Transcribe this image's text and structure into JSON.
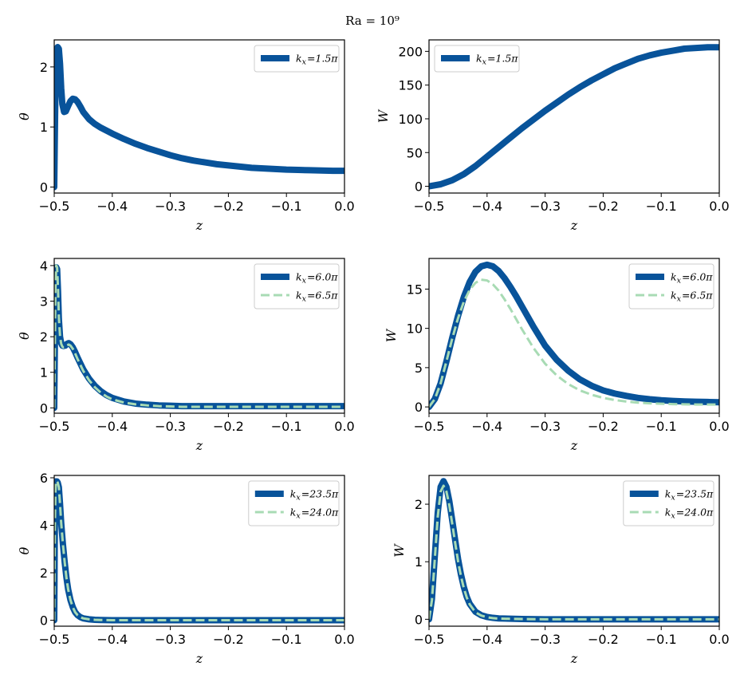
{
  "suptitle": "Ra = 10⁹",
  "colors": {
    "dark": "#08539a",
    "light": "#a8dbb4"
  },
  "chart_data": [
    {
      "type": "line",
      "id": "p1",
      "ylabel": "θ",
      "xlabel": "z",
      "xlim": [
        -0.5,
        0.0
      ],
      "ylim": [
        -0.1,
        2.45
      ],
      "xticks": [
        -0.5,
        -0.4,
        -0.3,
        -0.2,
        -0.1,
        0.0
      ],
      "xtick_labels": [
        "−0.5",
        "−0.4",
        "−0.3",
        "−0.2",
        "−0.1",
        "0.0"
      ],
      "yticks": [
        0,
        1,
        2
      ],
      "ytick_labels": [
        "0",
        "1",
        "2"
      ],
      "legend_loc": "upper right",
      "series": [
        {
          "name": "k_x = 1.5π",
          "label_base": "k",
          "label_sub": "x",
          "label_rest": "=1.5π",
          "style": "solid",
          "x": [
            -0.5,
            -0.4985,
            -0.497,
            -0.4955,
            -0.494,
            -0.492,
            -0.49,
            -0.488,
            -0.486,
            -0.483,
            -0.48,
            -0.476,
            -0.472,
            -0.468,
            -0.464,
            -0.46,
            -0.455,
            -0.45,
            -0.44,
            -0.43,
            -0.42,
            -0.41,
            -0.4,
            -0.38,
            -0.36,
            -0.34,
            -0.32,
            -0.3,
            -0.28,
            -0.26,
            -0.24,
            -0.22,
            -0.2,
            -0.18,
            -0.16,
            -0.14,
            -0.12,
            -0.1,
            -0.08,
            -0.06,
            -0.04,
            -0.02,
            0.0
          ],
          "y": [
            0.0,
            1.2,
            2.1,
            2.3,
            2.33,
            2.3,
            2.05,
            1.65,
            1.38,
            1.25,
            1.26,
            1.35,
            1.43,
            1.47,
            1.46,
            1.42,
            1.34,
            1.25,
            1.13,
            1.05,
            0.99,
            0.94,
            0.89,
            0.8,
            0.72,
            0.65,
            0.59,
            0.53,
            0.48,
            0.44,
            0.41,
            0.38,
            0.36,
            0.34,
            0.32,
            0.31,
            0.3,
            0.29,
            0.285,
            0.28,
            0.275,
            0.27,
            0.27
          ]
        }
      ]
    },
    {
      "type": "line",
      "id": "p2",
      "ylabel": "W",
      "xlabel": "z",
      "xlim": [
        -0.5,
        0.0
      ],
      "ylim": [
        -10,
        217
      ],
      "xticks": [
        -0.5,
        -0.4,
        -0.3,
        -0.2,
        -0.1,
        0.0
      ],
      "xtick_labels": [
        "−0.5",
        "−0.4",
        "−0.3",
        "−0.2",
        "−0.1",
        "0.0"
      ],
      "yticks": [
        0,
        50,
        100,
        150,
        200
      ],
      "ytick_labels": [
        "0",
        "50",
        "100",
        "150",
        "200"
      ],
      "legend_loc": "upper left",
      "series": [
        {
          "name": "k_x = 1.5π",
          "label_base": "k",
          "label_sub": "x",
          "label_rest": "=1.5π",
          "style": "solid",
          "x": [
            -0.5,
            -0.48,
            -0.46,
            -0.44,
            -0.42,
            -0.4,
            -0.38,
            -0.36,
            -0.34,
            -0.32,
            -0.3,
            -0.28,
            -0.26,
            -0.24,
            -0.22,
            -0.2,
            -0.18,
            -0.16,
            -0.14,
            -0.12,
            -0.1,
            -0.08,
            -0.06,
            -0.04,
            -0.02,
            0.0
          ],
          "y": [
            0,
            3,
            9,
            18,
            30,
            44,
            58,
            72,
            86,
            99,
            112,
            124,
            136,
            147,
            157,
            166,
            175,
            182,
            189,
            194,
            198,
            201,
            204,
            205,
            206,
            206
          ]
        }
      ]
    },
    {
      "type": "line",
      "id": "p3",
      "ylabel": "θ",
      "xlabel": "z",
      "xlim": [
        -0.5,
        0.0
      ],
      "ylim": [
        -0.15,
        4.2
      ],
      "xticks": [
        -0.5,
        -0.4,
        -0.3,
        -0.2,
        -0.1,
        0.0
      ],
      "xtick_labels": [
        "−0.5",
        "−0.4",
        "−0.3",
        "−0.2",
        "−0.1",
        "0.0"
      ],
      "yticks": [
        0,
        1,
        2,
        3,
        4
      ],
      "ytick_labels": [
        "0",
        "1",
        "2",
        "3",
        "4"
      ],
      "legend_loc": "upper right",
      "series": [
        {
          "name": "k_x = 6.0π",
          "label_base": "k",
          "label_sub": "x",
          "label_rest": "=6.0π",
          "style": "solid",
          "x": [
            -0.5,
            -0.499,
            -0.498,
            -0.4965,
            -0.495,
            -0.4935,
            -0.492,
            -0.49,
            -0.488,
            -0.486,
            -0.484,
            -0.481,
            -0.478,
            -0.475,
            -0.472,
            -0.468,
            -0.464,
            -0.46,
            -0.455,
            -0.45,
            -0.44,
            -0.43,
            -0.42,
            -0.41,
            -0.4,
            -0.38,
            -0.36,
            -0.34,
            -0.32,
            -0.3,
            -0.28,
            -0.25,
            -0.2,
            -0.15,
            -0.1,
            -0.05,
            0.0
          ],
          "y": [
            0.0,
            1.6,
            3.3,
            3.95,
            3.9,
            3.3,
            2.5,
            2.0,
            1.82,
            1.75,
            1.74,
            1.75,
            1.8,
            1.82,
            1.79,
            1.7,
            1.57,
            1.42,
            1.25,
            1.08,
            0.82,
            0.62,
            0.47,
            0.36,
            0.28,
            0.18,
            0.12,
            0.09,
            0.07,
            0.06,
            0.05,
            0.05,
            0.05,
            0.05,
            0.05,
            0.05,
            0.05
          ]
        },
        {
          "name": "k_x = 6.5π",
          "label_base": "k",
          "label_sub": "x",
          "label_rest": "=6.5π",
          "style": "dashed",
          "x": [
            -0.5,
            -0.499,
            -0.498,
            -0.4965,
            -0.495,
            -0.4935,
            -0.492,
            -0.49,
            -0.488,
            -0.486,
            -0.484,
            -0.481,
            -0.478,
            -0.475,
            -0.472,
            -0.468,
            -0.464,
            -0.46,
            -0.455,
            -0.45,
            -0.44,
            -0.43,
            -0.42,
            -0.41,
            -0.4,
            -0.38,
            -0.36,
            -0.34,
            -0.32,
            -0.3,
            -0.28,
            -0.25,
            -0.2,
            -0.15,
            -0.1,
            -0.05,
            0.0
          ],
          "y": [
            0.0,
            1.6,
            3.3,
            4.0,
            3.95,
            3.35,
            2.55,
            2.02,
            1.8,
            1.72,
            1.7,
            1.72,
            1.76,
            1.78,
            1.75,
            1.66,
            1.53,
            1.38,
            1.21,
            1.04,
            0.78,
            0.58,
            0.43,
            0.32,
            0.24,
            0.15,
            0.1,
            0.07,
            0.05,
            0.04,
            0.03,
            0.03,
            0.03,
            0.03,
            0.03,
            0.03,
            0.03
          ]
        }
      ]
    },
    {
      "type": "line",
      "id": "p4",
      "ylabel": "W",
      "xlabel": "z",
      "xlim": [
        -0.5,
        0.0
      ],
      "ylim": [
        -0.8,
        18.9
      ],
      "xticks": [
        -0.5,
        -0.4,
        -0.3,
        -0.2,
        -0.1,
        0.0
      ],
      "xtick_labels": [
        "−0.5",
        "−0.4",
        "−0.3",
        "−0.2",
        "−0.1",
        "0.0"
      ],
      "yticks": [
        0,
        5,
        10,
        15
      ],
      "ytick_labels": [
        "0",
        "5",
        "10",
        "15"
      ],
      "legend_loc": "upper right",
      "series": [
        {
          "name": "k_x = 6.0π",
          "label_base": "k",
          "label_sub": "x",
          "label_rest": "=6.0π",
          "style": "solid",
          "x": [
            -0.5,
            -0.49,
            -0.48,
            -0.47,
            -0.46,
            -0.45,
            -0.44,
            -0.43,
            -0.42,
            -0.41,
            -0.4,
            -0.39,
            -0.38,
            -0.37,
            -0.36,
            -0.35,
            -0.34,
            -0.33,
            -0.32,
            -0.31,
            -0.3,
            -0.28,
            -0.26,
            -0.24,
            -0.22,
            -0.2,
            -0.18,
            -0.16,
            -0.14,
            -0.12,
            -0.1,
            -0.08,
            -0.06,
            -0.04,
            -0.02,
            0.0
          ],
          "y": [
            0.0,
            1.0,
            3.0,
            5.8,
            8.8,
            11.6,
            14.0,
            15.9,
            17.2,
            17.9,
            18.1,
            17.9,
            17.3,
            16.4,
            15.3,
            14.1,
            12.8,
            11.5,
            10.2,
            9.0,
            7.8,
            6.0,
            4.6,
            3.5,
            2.7,
            2.1,
            1.7,
            1.4,
            1.15,
            0.98,
            0.85,
            0.76,
            0.7,
            0.66,
            0.63,
            0.6
          ]
        },
        {
          "name": "k_x = 6.5π",
          "label_base": "k",
          "label_sub": "x",
          "label_rest": "=6.5π",
          "style": "dashed",
          "x": [
            -0.5,
            -0.49,
            -0.48,
            -0.47,
            -0.46,
            -0.45,
            -0.44,
            -0.43,
            -0.42,
            -0.41,
            -0.4,
            -0.39,
            -0.38,
            -0.37,
            -0.36,
            -0.35,
            -0.34,
            -0.33,
            -0.32,
            -0.31,
            -0.3,
            -0.28,
            -0.26,
            -0.24,
            -0.22,
            -0.2,
            -0.18,
            -0.16,
            -0.14,
            -0.12,
            -0.1,
            -0.08,
            -0.06,
            -0.04,
            -0.02,
            0.0
          ],
          "y": [
            0.0,
            1.0,
            3.0,
            5.8,
            8.7,
            11.3,
            13.4,
            14.9,
            15.8,
            16.2,
            16.1,
            15.6,
            14.8,
            13.7,
            12.5,
            11.2,
            9.9,
            8.7,
            7.5,
            6.5,
            5.5,
            4.0,
            2.9,
            2.1,
            1.55,
            1.15,
            0.88,
            0.68,
            0.55,
            0.46,
            0.4,
            0.36,
            0.33,
            0.31,
            0.3,
            0.3
          ]
        }
      ]
    },
    {
      "type": "line",
      "id": "p5",
      "ylabel": "θ",
      "xlabel": "z",
      "xlim": [
        -0.5,
        0.0
      ],
      "ylim": [
        -0.25,
        6.1
      ],
      "xticks": [
        -0.5,
        -0.4,
        -0.3,
        -0.2,
        -0.1,
        0.0
      ],
      "xtick_labels": [
        "−0.5",
        "−0.4",
        "−0.3",
        "−0.2",
        "−0.1",
        "0.0"
      ],
      "yticks": [
        0,
        2,
        4,
        6
      ],
      "ytick_labels": [
        "0",
        "2",
        "4",
        "6"
      ],
      "legend_loc": "upper right",
      "series": [
        {
          "name": "k_x = 23.5π",
          "label_base": "k",
          "label_sub": "x",
          "label_rest": "=23.5π",
          "style": "solid",
          "x": [
            -0.5,
            -0.4995,
            -0.499,
            -0.498,
            -0.497,
            -0.4955,
            -0.494,
            -0.492,
            -0.49,
            -0.488,
            -0.485,
            -0.482,
            -0.479,
            -0.476,
            -0.472,
            -0.468,
            -0.464,
            -0.46,
            -0.455,
            -0.45,
            -0.44,
            -0.43,
            -0.42,
            -0.4,
            -0.35,
            -0.3,
            -0.2,
            -0.1,
            0.0
          ],
          "y": [
            0.0,
            1.8,
            3.8,
            5.4,
            5.85,
            5.85,
            5.8,
            5.6,
            4.9,
            4.1,
            3.2,
            2.45,
            1.8,
            1.3,
            0.85,
            0.55,
            0.34,
            0.22,
            0.13,
            0.08,
            0.04,
            0.02,
            0.01,
            0.0,
            0.0,
            0.0,
            0.0,
            0.0,
            0.0
          ]
        },
        {
          "name": "k_x = 24.0π",
          "label_base": "k",
          "label_sub": "x",
          "label_rest": "=24.0π",
          "style": "dashed",
          "x": [
            -0.5,
            -0.4995,
            -0.499,
            -0.498,
            -0.497,
            -0.4955,
            -0.494,
            -0.492,
            -0.49,
            -0.488,
            -0.485,
            -0.482,
            -0.479,
            -0.476,
            -0.472,
            -0.468,
            -0.464,
            -0.46,
            -0.455,
            -0.45,
            -0.44,
            -0.43,
            -0.42,
            -0.4,
            -0.35,
            -0.3,
            -0.2,
            -0.1,
            0.0
          ],
          "y": [
            0.0,
            1.8,
            3.8,
            5.4,
            5.85,
            5.85,
            5.8,
            5.6,
            4.9,
            4.1,
            3.2,
            2.45,
            1.8,
            1.3,
            0.85,
            0.55,
            0.34,
            0.22,
            0.13,
            0.08,
            0.04,
            0.02,
            0.01,
            0.0,
            0.0,
            0.0,
            0.0,
            0.0,
            0.0
          ]
        }
      ]
    },
    {
      "type": "line",
      "id": "p6",
      "ylabel": "W",
      "xlabel": "z",
      "xlim": [
        -0.5,
        0.0
      ],
      "ylim": [
        -0.12,
        2.5
      ],
      "xticks": [
        -0.5,
        -0.4,
        -0.3,
        -0.2,
        -0.1,
        0.0
      ],
      "xtick_labels": [
        "−0.5",
        "−0.4",
        "−0.3",
        "−0.2",
        "−0.1",
        "0.0"
      ],
      "yticks": [
        0,
        1,
        2
      ],
      "ytick_labels": [
        "0",
        "1",
        "2"
      ],
      "legend_loc": "upper right",
      "series": [
        {
          "name": "k_x = 23.5π",
          "label_base": "k",
          "label_sub": "x",
          "label_rest": "=23.5π",
          "style": "solid",
          "x": [
            -0.5,
            -0.495,
            -0.49,
            -0.485,
            -0.48,
            -0.475,
            -0.47,
            -0.465,
            -0.46,
            -0.455,
            -0.45,
            -0.445,
            -0.44,
            -0.435,
            -0.43,
            -0.42,
            -0.41,
            -0.4,
            -0.39,
            -0.38,
            -0.36,
            -0.34,
            -0.3,
            -0.2,
            -0.1,
            0.0
          ],
          "y": [
            0.0,
            0.35,
            1.1,
            1.85,
            2.3,
            2.4,
            2.3,
            2.05,
            1.72,
            1.38,
            1.05,
            0.78,
            0.56,
            0.39,
            0.27,
            0.13,
            0.07,
            0.04,
            0.025,
            0.015,
            0.01,
            0.005,
            0.0,
            0.0,
            0.0,
            0.0
          ]
        },
        {
          "name": "k_x = 24.0π",
          "label_base": "k",
          "label_sub": "x",
          "label_rest": "=24.0π",
          "style": "dashed",
          "x": [
            -0.5,
            -0.495,
            -0.49,
            -0.485,
            -0.48,
            -0.475,
            -0.47,
            -0.465,
            -0.46,
            -0.455,
            -0.45,
            -0.445,
            -0.44,
            -0.435,
            -0.43,
            -0.42,
            -0.41,
            -0.4,
            -0.39,
            -0.38,
            -0.36,
            -0.34,
            -0.3,
            -0.2,
            -0.1,
            0.0
          ],
          "y": [
            0.0,
            0.33,
            1.05,
            1.78,
            2.22,
            2.32,
            2.22,
            1.98,
            1.66,
            1.33,
            1.01,
            0.75,
            0.54,
            0.38,
            0.26,
            0.12,
            0.065,
            0.035,
            0.02,
            0.012,
            0.008,
            0.004,
            0.0,
            0.0,
            0.0,
            0.0
          ]
        }
      ]
    }
  ]
}
